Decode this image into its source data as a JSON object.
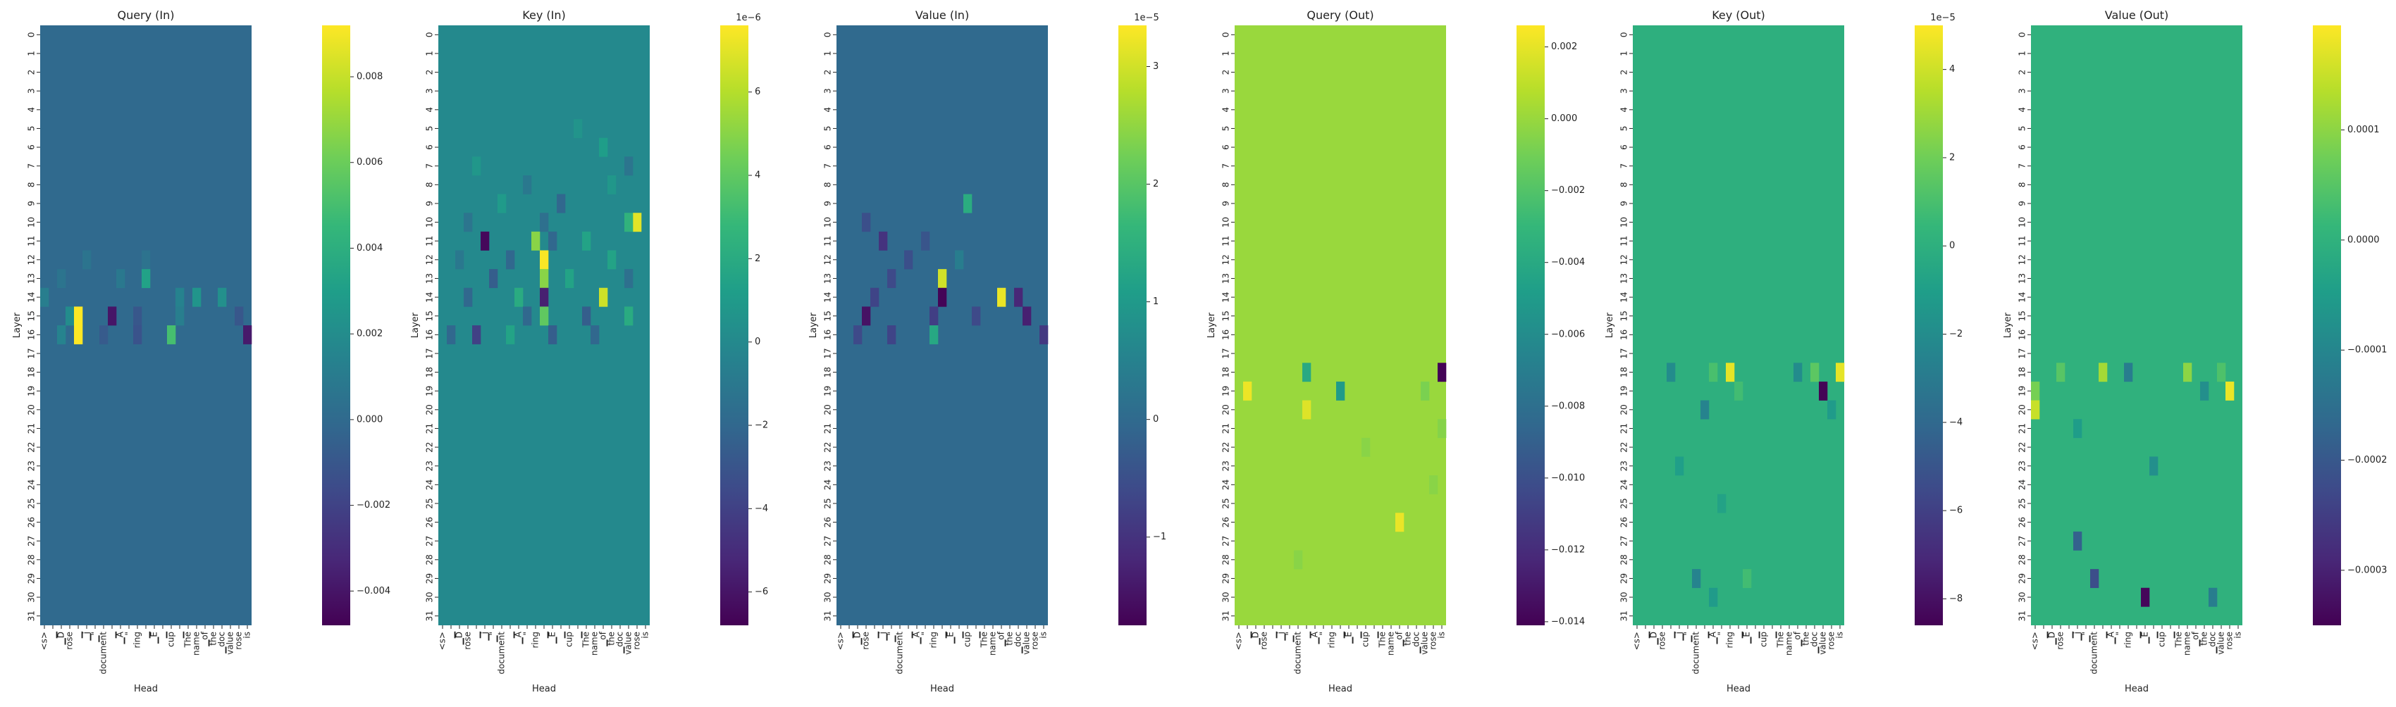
{
  "figure": {
    "ylabel": "Layer",
    "xlabel": "Head",
    "layers": [
      "0",
      "1",
      "2",
      "3",
      "4",
      "5",
      "6",
      "7",
      "8",
      "9",
      "10",
      "11",
      "12",
      "13",
      "14",
      "15",
      "16",
      "17",
      "18",
      "19",
      "20",
      "21",
      "22",
      "23",
      "24",
      "25",
      "26",
      "27",
      "28",
      "29",
      "30",
      "31"
    ],
    "tokens": [
      "<s>",
      "▁",
      "▁D",
      "rose",
      "▁",
      "▁j",
      "▁\"",
      "document",
      "▁",
      "▁A",
      "\"",
      "ring",
      "▁",
      "▁E",
      "▁",
      "cup",
      "▁",
      "The",
      "name",
      "▁of",
      "the",
      "▁doc",
      "value",
      "rose",
      "is"
    ],
    "colormap": "viridis",
    "colormap_stops": [
      "#440154",
      "#482878",
      "#3e4989",
      "#31688e",
      "#26828e",
      "#1f9e89",
      "#35b779",
      "#6ece58",
      "#b5de2b",
      "#fde725"
    ]
  },
  "chart_data": [
    {
      "type": "heatmap",
      "title": "Query (In)",
      "xlabel": "Head",
      "ylabel": "Layer",
      "vmin": -0.0048,
      "vmax": 0.0092,
      "background": 0.0,
      "colorbar_ticks": [
        {
          "v": 0.008,
          "label": "0.008"
        },
        {
          "v": 0.006,
          "label": "0.006"
        },
        {
          "v": 0.004,
          "label": "0.004"
        },
        {
          "v": 0.002,
          "label": "0.002"
        },
        {
          "v": 0.0,
          "label": "0.000"
        },
        {
          "v": -0.002,
          "label": "−0.002"
        },
        {
          "v": -0.004,
          "label": "−0.004"
        }
      ],
      "exponent": "",
      "cells": [
        {
          "layer": 12,
          "head": 12,
          "v": 0.0005
        },
        {
          "layer": 12,
          "head": 5,
          "v": 0.0006
        },
        {
          "layer": 13,
          "head": 12,
          "v": 0.0032
        },
        {
          "layer": 13,
          "head": 9,
          "v": 0.0008
        },
        {
          "layer": 13,
          "head": 2,
          "v": 0.0006
        },
        {
          "layer": 14,
          "head": 0,
          "v": 0.0012
        },
        {
          "layer": 14,
          "head": 18,
          "v": 0.0025
        },
        {
          "layer": 14,
          "head": 21,
          "v": 0.0022
        },
        {
          "layer": 14,
          "head": 16,
          "v": 0.0014
        },
        {
          "layer": 15,
          "head": 3,
          "v": 0.002
        },
        {
          "layer": 15,
          "head": 8,
          "v": -0.004
        },
        {
          "layer": 15,
          "head": 11,
          "v": -0.001
        },
        {
          "layer": 15,
          "head": 16,
          "v": 0.0012
        },
        {
          "layer": 15,
          "head": 23,
          "v": -0.001
        },
        {
          "layer": 15,
          "head": 4,
          "v": 0.0092
        },
        {
          "layer": 16,
          "head": 4,
          "v": 0.0092
        },
        {
          "layer": 16,
          "head": 15,
          "v": 0.005
        },
        {
          "layer": 16,
          "head": 11,
          "v": -0.0012
        },
        {
          "layer": 16,
          "head": 24,
          "v": -0.0038
        },
        {
          "layer": 16,
          "head": 2,
          "v": 0.0015
        },
        {
          "layer": 16,
          "head": 7,
          "v": -0.0008
        }
      ]
    },
    {
      "type": "heatmap",
      "title": "Key (In)",
      "xlabel": "Head",
      "ylabel": "Layer",
      "vmin": -6.8,
      "vmax": 7.6,
      "background": 0.0,
      "colorbar_ticks": [
        {
          "v": 6,
          "label": "6"
        },
        {
          "v": 4,
          "label": "4"
        },
        {
          "v": 2,
          "label": "2"
        },
        {
          "v": 0,
          "label": "0"
        },
        {
          "v": -2,
          "label": "−2"
        },
        {
          "v": -4,
          "label": "−4"
        },
        {
          "v": -6,
          "label": "−6"
        }
      ],
      "exponent": "1e−6",
      "cells": [
        {
          "layer": 5,
          "head": 16,
          "v": 0.6
        },
        {
          "layer": 6,
          "head": 19,
          "v": 1.2
        },
        {
          "layer": 7,
          "head": 22,
          "v": -1.2
        },
        {
          "layer": 7,
          "head": 4,
          "v": 0.8
        },
        {
          "layer": 8,
          "head": 10,
          "v": -1.0
        },
        {
          "layer": 8,
          "head": 20,
          "v": 0.8
        },
        {
          "layer": 9,
          "head": 14,
          "v": -2.0
        },
        {
          "layer": 9,
          "head": 7,
          "v": 1.0
        },
        {
          "layer": 10,
          "head": 23,
          "v": 7.0
        },
        {
          "layer": 10,
          "head": 22,
          "v": 2.5
        },
        {
          "layer": 10,
          "head": 12,
          "v": -1.5
        },
        {
          "layer": 10,
          "head": 3,
          "v": -1.2
        },
        {
          "layer": 11,
          "head": 5,
          "v": -6.5
        },
        {
          "layer": 11,
          "head": 11,
          "v": 5.0
        },
        {
          "layer": 11,
          "head": 13,
          "v": -2.0
        },
        {
          "layer": 11,
          "head": 17,
          "v": 1.5
        },
        {
          "layer": 12,
          "head": 12,
          "v": 7.5
        },
        {
          "layer": 12,
          "head": 8,
          "v": -2.0
        },
        {
          "layer": 12,
          "head": 20,
          "v": 1.5
        },
        {
          "layer": 12,
          "head": 2,
          "v": -1.0
        },
        {
          "layer": 13,
          "head": 12,
          "v": 5.0
        },
        {
          "layer": 13,
          "head": 6,
          "v": -2.5
        },
        {
          "layer": 13,
          "head": 15,
          "v": 1.5
        },
        {
          "layer": 13,
          "head": 22,
          "v": -1.5
        },
        {
          "layer": 14,
          "head": 12,
          "v": -5.5
        },
        {
          "layer": 14,
          "head": 19,
          "v": 6.5
        },
        {
          "layer": 14,
          "head": 9,
          "v": 2.0
        },
        {
          "layer": 14,
          "head": 3,
          "v": -2.0
        },
        {
          "layer": 15,
          "head": 17,
          "v": -2.5
        },
        {
          "layer": 15,
          "head": 10,
          "v": -2.0
        },
        {
          "layer": 15,
          "head": 12,
          "v": 4.0
        },
        {
          "layer": 15,
          "head": 22,
          "v": 2.0
        },
        {
          "layer": 16,
          "head": 4,
          "v": -4.0
        },
        {
          "layer": 16,
          "head": 13,
          "v": -2.5
        },
        {
          "layer": 16,
          "head": 8,
          "v": 1.5
        },
        {
          "layer": 16,
          "head": 18,
          "v": -2.0
        },
        {
          "layer": 16,
          "head": 1,
          "v": -2.0
        }
      ]
    },
    {
      "type": "heatmap",
      "title": "Value (In)",
      "xlabel": "Head",
      "ylabel": "Layer",
      "vmin": -1.75,
      "vmax": 3.35,
      "background": 0.0,
      "colorbar_ticks": [
        {
          "v": 3,
          "label": "3"
        },
        {
          "v": 2,
          "label": "2"
        },
        {
          "v": 1,
          "label": "1"
        },
        {
          "v": 0,
          "label": "0"
        },
        {
          "v": -1,
          "label": "−1"
        }
      ],
      "exponent": "1e−5",
      "cells": [
        {
          "layer": 9,
          "head": 15,
          "v": 1.4
        },
        {
          "layer": 10,
          "head": 3,
          "v": -0.5
        },
        {
          "layer": 11,
          "head": 5,
          "v": -1.0
        },
        {
          "layer": 11,
          "head": 10,
          "v": -0.4
        },
        {
          "layer": 12,
          "head": 8,
          "v": -0.5
        },
        {
          "layer": 12,
          "head": 14,
          "v": 0.4
        },
        {
          "layer": 13,
          "head": 12,
          "v": 3.0
        },
        {
          "layer": 13,
          "head": 6,
          "v": -0.6
        },
        {
          "layer": 14,
          "head": 12,
          "v": -1.7
        },
        {
          "layer": 14,
          "head": 19,
          "v": 3.2
        },
        {
          "layer": 14,
          "head": 21,
          "v": -1.2
        },
        {
          "layer": 14,
          "head": 4,
          "v": -0.7
        },
        {
          "layer": 15,
          "head": 3,
          "v": -1.5
        },
        {
          "layer": 15,
          "head": 11,
          "v": -0.8
        },
        {
          "layer": 15,
          "head": 16,
          "v": -0.6
        },
        {
          "layer": 15,
          "head": 22,
          "v": -1.3
        },
        {
          "layer": 16,
          "head": 11,
          "v": 1.3
        },
        {
          "layer": 16,
          "head": 6,
          "v": -0.7
        },
        {
          "layer": 16,
          "head": 2,
          "v": -0.6
        },
        {
          "layer": 16,
          "head": 24,
          "v": -0.9
        }
      ]
    },
    {
      "type": "heatmap",
      "title": "Query (Out)",
      "xlabel": "Head",
      "ylabel": "Layer",
      "vmin": -0.0141,
      "vmax": 0.0026,
      "background": 0.0,
      "colorbar_ticks": [
        {
          "v": 0.002,
          "label": "0.002"
        },
        {
          "v": 0.0,
          "label": "0.000"
        },
        {
          "v": -0.002,
          "label": "−0.002"
        },
        {
          "v": -0.004,
          "label": "−0.004"
        },
        {
          "v": -0.006,
          "label": "−0.006"
        },
        {
          "v": -0.008,
          "label": "−0.008"
        },
        {
          "v": -0.01,
          "label": "−0.010"
        },
        {
          "v": -0.012,
          "label": "−0.012"
        },
        {
          "v": -0.014,
          "label": "−0.014"
        }
      ],
      "exponent": "",
      "cells": [
        {
          "layer": 18,
          "head": 24,
          "v": -0.014
        },
        {
          "layer": 18,
          "head": 8,
          "v": -0.004
        },
        {
          "layer": 19,
          "head": 1,
          "v": 0.0022
        },
        {
          "layer": 19,
          "head": 12,
          "v": -0.005
        },
        {
          "layer": 19,
          "head": 22,
          "v": -0.0008
        },
        {
          "layer": 20,
          "head": 8,
          "v": 0.0018
        },
        {
          "layer": 21,
          "head": 24,
          "v": -0.0005
        },
        {
          "layer": 22,
          "head": 15,
          "v": -0.0004
        },
        {
          "layer": 24,
          "head": 23,
          "v": -0.0004
        },
        {
          "layer": 26,
          "head": 19,
          "v": 0.0021
        },
        {
          "layer": 28,
          "head": 7,
          "v": -0.0004
        }
      ]
    },
    {
      "type": "heatmap",
      "title": "Key (Out)",
      "xlabel": "Head",
      "ylabel": "Layer",
      "vmin": -8.6,
      "vmax": 5.0,
      "background": 0.0,
      "colorbar_ticks": [
        {
          "v": 4,
          "label": "4"
        },
        {
          "v": 2,
          "label": "2"
        },
        {
          "v": 0,
          "label": "0"
        },
        {
          "v": -2,
          "label": "−2"
        },
        {
          "v": -4,
          "label": "−4"
        },
        {
          "v": -6,
          "label": "−6"
        },
        {
          "v": -8,
          "label": "−8"
        }
      ],
      "exponent": "1e−5",
      "cells": [
        {
          "layer": 18,
          "head": 4,
          "v": -2.0
        },
        {
          "layer": 18,
          "head": 9,
          "v": 1.0
        },
        {
          "layer": 18,
          "head": 11,
          "v": 4.5
        },
        {
          "layer": 18,
          "head": 19,
          "v": -2.0
        },
        {
          "layer": 18,
          "head": 21,
          "v": 1.5
        },
        {
          "layer": 18,
          "head": 24,
          "v": 4.5
        },
        {
          "layer": 19,
          "head": 22,
          "v": -8.5
        },
        {
          "layer": 19,
          "head": 12,
          "v": 0.8
        },
        {
          "layer": 20,
          "head": 8,
          "v": -2.5
        },
        {
          "layer": 20,
          "head": 23,
          "v": -1.2
        },
        {
          "layer": 23,
          "head": 5,
          "v": -1.0
        },
        {
          "layer": 25,
          "head": 10,
          "v": -0.8
        },
        {
          "layer": 29,
          "head": 7,
          "v": -2.5
        },
        {
          "layer": 29,
          "head": 13,
          "v": 0.8
        },
        {
          "layer": 30,
          "head": 9,
          "v": -1.2
        }
      ]
    },
    {
      "type": "heatmap",
      "title": "Value (Out)",
      "xlabel": "Head",
      "ylabel": "Layer",
      "vmin": -0.00035,
      "vmax": 0.000195,
      "background": 0.0,
      "colorbar_ticks": [
        {
          "v": 0.0001,
          "label": "0.0001"
        },
        {
          "v": 0.0,
          "label": "0.0000"
        },
        {
          "v": -0.0001,
          "label": "−0.0001"
        },
        {
          "v": -0.0002,
          "label": "−0.0002"
        },
        {
          "v": -0.0003,
          "label": "−0.0003"
        }
      ],
      "exponent": "",
      "cells": [
        {
          "layer": 18,
          "head": 3,
          "v": 5e-05
        },
        {
          "layer": 18,
          "head": 8,
          "v": 0.00012
        },
        {
          "layer": 18,
          "head": 11,
          "v": -0.00012
        },
        {
          "layer": 18,
          "head": 18,
          "v": 0.0001
        },
        {
          "layer": 18,
          "head": 22,
          "v": 4e-05
        },
        {
          "layer": 19,
          "head": 0,
          "v": 8e-05
        },
        {
          "layer": 19,
          "head": 23,
          "v": 0.00018
        },
        {
          "layer": 19,
          "head": 20,
          "v": -8e-05
        },
        {
          "layer": 20,
          "head": 0,
          "v": 0.00015
        },
        {
          "layer": 21,
          "head": 5,
          "v": -5e-05
        },
        {
          "layer": 23,
          "head": 14,
          "v": -8e-05
        },
        {
          "layer": 27,
          "head": 5,
          "v": -0.00018
        },
        {
          "layer": 29,
          "head": 7,
          "v": -0.00022
        },
        {
          "layer": 30,
          "head": 13,
          "v": -0.00034
        },
        {
          "layer": 30,
          "head": 21,
          "v": -0.00012
        }
      ]
    }
  ]
}
